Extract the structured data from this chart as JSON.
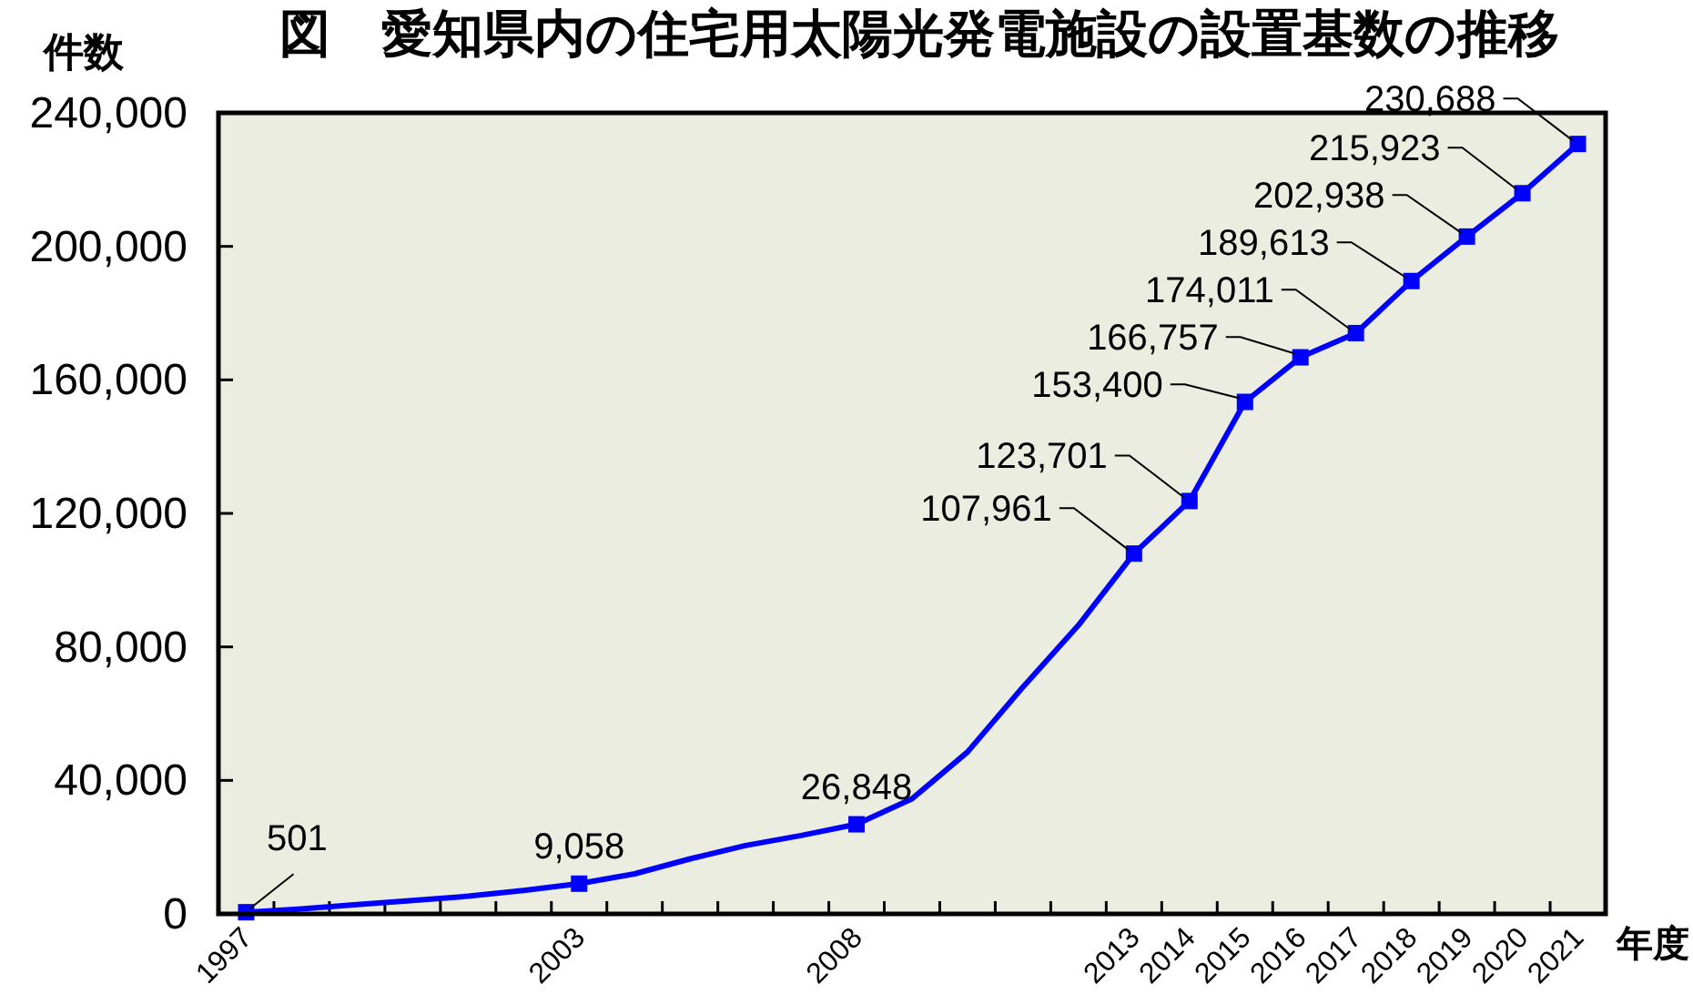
{
  "chart_data": {
    "type": "line",
    "title": "図　愛知県内の住宅用太陽光発電施設の設置基数の推移",
    "ylabel": "件数",
    "xlabel": "年度",
    "categories": [
      "1997",
      null,
      null,
      null,
      null,
      null,
      "2003",
      null,
      null,
      null,
      null,
      "2008",
      null,
      null,
      null,
      null,
      "2013",
      "2014",
      "2015",
      "2016",
      "2017",
      "2018",
      "2019",
      "2020",
      "2021"
    ],
    "ylim": [
      0,
      240000
    ],
    "yticks": [
      0,
      {
        "value": 40000,
        "label": "40,000"
      },
      {
        "value": 80000,
        "label": "80,000"
      },
      {
        "value": 120000,
        "label": "120,000"
      },
      {
        "value": 160000,
        "label": "160,000"
      },
      {
        "value": 200000,
        "label": "200,000"
      },
      {
        "value": 240000,
        "label": "240,000"
      }
    ],
    "series": [
      {
        "type": "line",
        "color": "#0000ff",
        "marker": "none",
        "values": [
          501,
          1500,
          2800,
          4000,
          5300,
          7000,
          9058,
          12000,
          16500,
          20500,
          23500,
          26848,
          34500,
          48500,
          68000,
          86500,
          107961,
          123701,
          153400,
          166757,
          174011,
          189613,
          202938,
          215923,
          230688
        ]
      },
      {
        "type": "scatter",
        "color": "#0000ff",
        "marker": "square",
        "values": [
          501,
          null,
          null,
          null,
          null,
          null,
          9058,
          null,
          null,
          null,
          null,
          26848,
          null,
          null,
          null,
          null,
          107961,
          123701,
          153400,
          166757,
          174011,
          189613,
          202938,
          215923,
          230688
        ],
        "value_labels": [
          "501",
          null,
          null,
          null,
          null,
          null,
          "9,058",
          null,
          null,
          null,
          null,
          "26,848",
          null,
          null,
          null,
          null,
          "107,961",
          "123,701",
          "153,400",
          "166,757",
          "174,011",
          "189,613",
          "202,938",
          "215,923",
          "230,688"
        ]
      }
    ]
  }
}
